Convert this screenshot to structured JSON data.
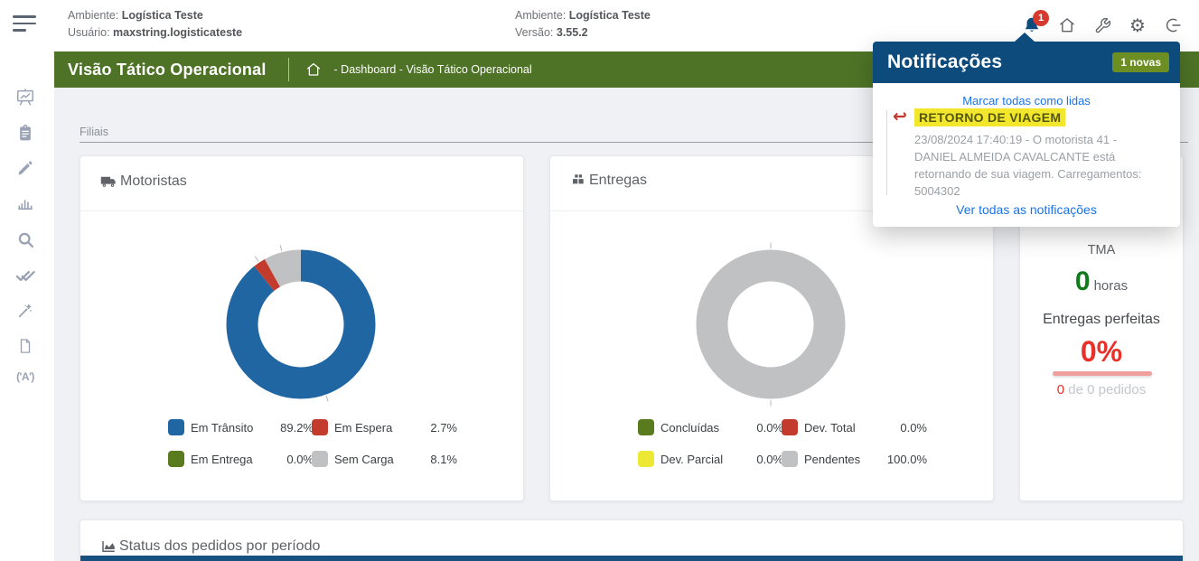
{
  "topbar": {
    "env1_label": "Ambiente:",
    "env1_value": "Logística Teste",
    "user_label": "Usuário:",
    "user_value": "maxstring.logisticateste",
    "env2_label": "Ambiente:",
    "env2_value": "Logística Teste",
    "version_label": "Versão:",
    "version_value": "3.55.2",
    "bell_badge": "1"
  },
  "header": {
    "title": "Visão Tático Operacional",
    "breadcrumb": "- Dashboard - Visão Tático Operacional"
  },
  "filters": {
    "filiais_label": "Filiais"
  },
  "notifications": {
    "title": "Notificações",
    "new_badge": "1 novas",
    "mark_all": "Marcar todas como lidas",
    "item": {
      "title": "RETORNO DE VIAGEM",
      "body": "23/08/2024 17:40:19 - O motorista 41 - DANIEL ALMEIDA CAVALCANTE está retornando de sua viagem. Carregamentos: 5004302"
    },
    "view_all": "Ver todas as notificações"
  },
  "cards": {
    "motoristas": {
      "title": "Motoristas"
    },
    "entregas": {
      "title": "Entregas"
    },
    "status": {
      "title": "Status dos pedidos por período"
    }
  },
  "kpi": {
    "tma_label": "TMA",
    "tma_value": "0",
    "tma_unit": "horas",
    "perfeitas_label": "Entregas perfeitas",
    "perfeitas_value": "0%",
    "pedidos_count": "0",
    "pedidos_rest": " de 0 pedidos"
  },
  "colors": {
    "header_green": "#4e7326",
    "popup_navy": "#0d4b7d",
    "badge_olive": "#6d8e23",
    "alert_red": "#d6392e",
    "link_blue": "#1a73e8",
    "highlight_yellow": "#f3e72e",
    "kpi_green": "#117a1d",
    "kpi_red": "#e8312a"
  },
  "chart_data": [
    {
      "type": "pie",
      "title": "Motoristas",
      "donut": true,
      "legend_position": "bottom",
      "series": [
        {
          "label": "Em Trânsito",
          "value": 89.2,
          "color": "#2066a2"
        },
        {
          "label": "Em Espera",
          "value": 2.7,
          "color": "#c23b2c"
        },
        {
          "label": "Em Entrega",
          "value": 0.0,
          "color": "#5a7a1e"
        },
        {
          "label": "Sem Carga",
          "value": 8.1,
          "color": "#bfc1c3"
        }
      ]
    },
    {
      "type": "pie",
      "title": "Entregas",
      "donut": true,
      "legend_position": "bottom",
      "series": [
        {
          "label": "Concluídas",
          "value": 0.0,
          "color": "#5a7a1e"
        },
        {
          "label": "Dev. Total",
          "value": 0.0,
          "color": "#c23b2c"
        },
        {
          "label": "Dev. Parcial",
          "value": 0.0,
          "color": "#ece833"
        },
        {
          "label": "Pendentes",
          "value": 100.0,
          "color": "#bfc1c3"
        }
      ]
    }
  ]
}
